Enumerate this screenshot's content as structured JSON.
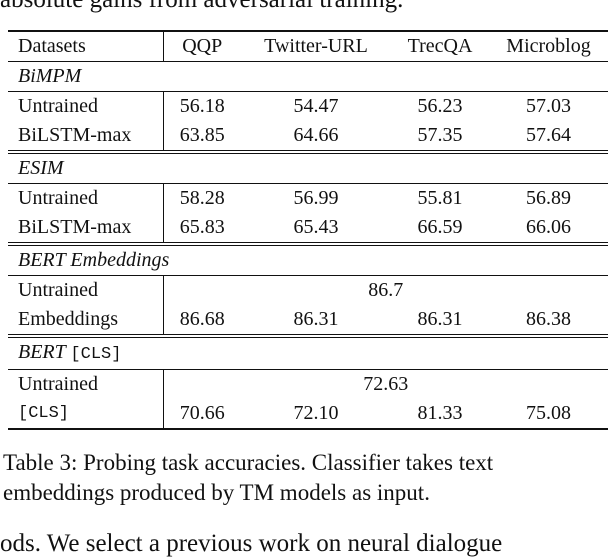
{
  "fragments": {
    "top": "absolute gains from adversarial training.",
    "bottom": "ods. We select a previous work on neural dialogue"
  },
  "table": {
    "header": [
      "Datasets",
      "QQP",
      "Twitter-URL",
      "TrecQA",
      "Microblog"
    ],
    "sections": [
      {
        "name": "BiMPM",
        "name_mono": "",
        "rows": [
          {
            "label": "Untrained",
            "values": [
              "56.18",
              "54.47",
              "56.23",
              "57.03"
            ]
          },
          {
            "label": "BiLSTM-max",
            "values": [
              "63.85",
              "64.66",
              "57.35",
              "57.64"
            ]
          }
        ]
      },
      {
        "name": "ESIM",
        "name_mono": "",
        "rows": [
          {
            "label": "Untrained",
            "values": [
              "58.28",
              "56.99",
              "55.81",
              "56.89"
            ]
          },
          {
            "label": "BiLSTM-max",
            "values": [
              "65.83",
              "65.43",
              "66.59",
              "66.06"
            ]
          }
        ]
      },
      {
        "name": "BERT Embeddings",
        "name_mono": "",
        "rows": [
          {
            "label": "Untrained",
            "span_value": "86.7"
          },
          {
            "label": "Embeddings",
            "values": [
              "86.68",
              "86.31",
              "86.31",
              "86.38"
            ]
          }
        ]
      },
      {
        "name": "BERT",
        "name_mono": "[CLS]",
        "rows": [
          {
            "label": "Untrained",
            "span_value": "72.63"
          },
          {
            "label": "[CLS]",
            "label_mono": true,
            "values": [
              "70.66",
              "72.10",
              "81.33",
              "75.08"
            ]
          }
        ]
      }
    ]
  },
  "caption": {
    "line1": "Table 3:  Probing task accuracies.  Classifier takes text",
    "line2": "embeddings produced by TM models as input."
  }
}
